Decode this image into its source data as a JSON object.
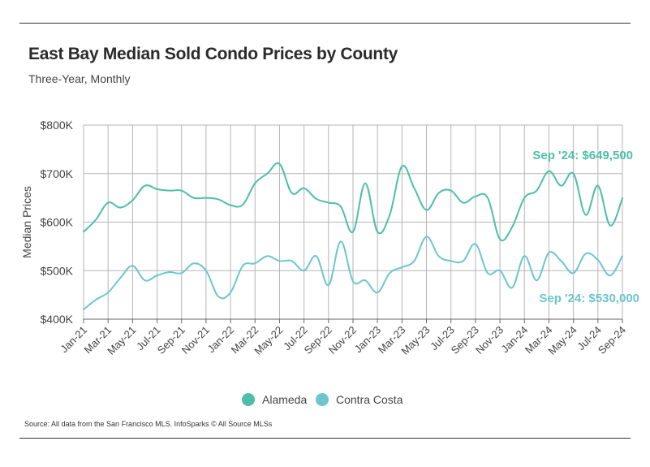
{
  "title": "East Bay Median Sold Condo Prices by County",
  "subtitle": "Three-Year, Monthly",
  "source": "Source:  All data from the San Francisco MLS. InfoSparks © All Source MLSs",
  "colors": {
    "alameda": "#4dbfa8",
    "contra_costa": "#6cc6cf",
    "grid": "#b5b5b5",
    "axis": "#666666"
  },
  "chart_data": {
    "type": "line",
    "title": "East Bay Median Sold Condo Prices by County",
    "subtitle": "Three-Year, Monthly",
    "xlabel": "",
    "ylabel": "Median Prices",
    "ylim": [
      400,
      800
    ],
    "y_ticks": [
      400,
      500,
      600,
      700,
      800
    ],
    "y_tick_labels": [
      "$400K",
      "$500K",
      "$600K",
      "$700K",
      "$800K"
    ],
    "x": [
      "Jan-21",
      "Feb-21",
      "Mar-21",
      "Apr-21",
      "May-21",
      "Jun-21",
      "Jul-21",
      "Aug-21",
      "Sep-21",
      "Oct-21",
      "Nov-21",
      "Dec-21",
      "Jan-22",
      "Feb-22",
      "Mar-22",
      "Apr-22",
      "May-22",
      "Jun-22",
      "Jul-22",
      "Aug-22",
      "Sep-22",
      "Oct-22",
      "Nov-22",
      "Dec-22",
      "Jan-23",
      "Feb-23",
      "Mar-23",
      "Apr-23",
      "May-23",
      "Jun-23",
      "Jul-23",
      "Aug-23",
      "Sep-23",
      "Oct-23",
      "Nov-23",
      "Dec-23",
      "Jan-24",
      "Feb-24",
      "Mar-24",
      "Apr-24",
      "May-24",
      "Jun-24",
      "Jul-24",
      "Aug-24",
      "Sep-24"
    ],
    "x_tick_labels": [
      "Jan-21",
      "Mar-21",
      "May-21",
      "Jul-21",
      "Sep-21",
      "Nov-21",
      "Jan-22",
      "Mar-22",
      "May-22",
      "Jul-22",
      "Sep-22",
      "Nov-22",
      "Jan-23",
      "Mar-23",
      "May-23",
      "Jul-23",
      "Sep-23",
      "Nov-23",
      "Jan-24",
      "Mar-24",
      "May-24",
      "Jul-24",
      "Sep-24"
    ],
    "grid": true,
    "legend_position": "bottom-center",
    "series": [
      {
        "name": "Alameda",
        "color": "#4dbfa8",
        "values": [
          580,
          605,
          640,
          630,
          645,
          675,
          668,
          665,
          665,
          650,
          650,
          647,
          635,
          636,
          680,
          700,
          720,
          660,
          670,
          648,
          640,
          632,
          580,
          680,
          580,
          615,
          715,
          670,
          625,
          660,
          665,
          640,
          653,
          650,
          565,
          590,
          650,
          665,
          705,
          675,
          700,
          615,
          675,
          593,
          649.5
        ]
      },
      {
        "name": "Contra Costa",
        "color": "#6cc6cf",
        "values": [
          420,
          440,
          455,
          485,
          510,
          480,
          490,
          497,
          495,
          515,
          500,
          447,
          455,
          510,
          515,
          530,
          520,
          520,
          500,
          530,
          470,
          560,
          478,
          480,
          455,
          495,
          507,
          520,
          570,
          530,
          520,
          520,
          555,
          495,
          500,
          465,
          530,
          480,
          537,
          520,
          495,
          535,
          522,
          490,
          530
        ]
      }
    ],
    "annotations": [
      {
        "text": "Sep '24: $649,500",
        "series": "Alameda"
      },
      {
        "text": "Sep '24: $530,000",
        "series": "Contra Costa"
      }
    ]
  }
}
